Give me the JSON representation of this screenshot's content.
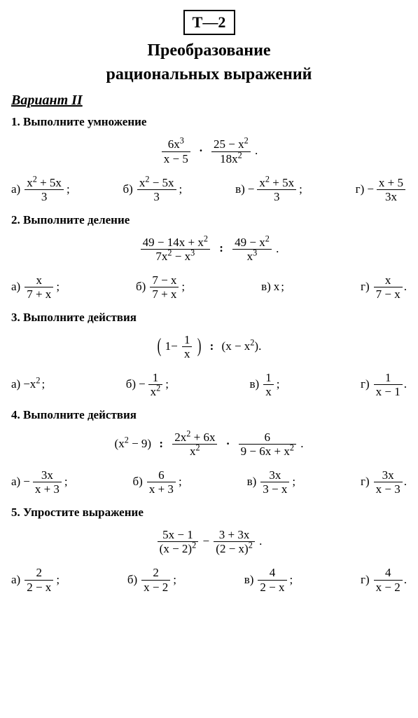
{
  "badge": "Т—2",
  "title_line1": "Преобразование",
  "title_line2": "рациональных выражений",
  "variant": "Вариант II",
  "letters": {
    "a": "а)",
    "b": "б)",
    "v": "в)",
    "g": "г)"
  },
  "t1": {
    "heading_num": "1.",
    "heading_text": " Выполните умножение",
    "expr": {
      "f1n": "6x³",
      "f1d": "x − 5",
      "f2n": "25 − x²",
      "f2d": "18x²"
    },
    "a": {
      "n": "x² + 5x",
      "d": "3"
    },
    "b": {
      "n": "x² − 5x",
      "d": "3"
    },
    "v": {
      "n": "x² + 5x",
      "d": "3"
    },
    "g": {
      "n": "x + 5",
      "d": "3x"
    }
  },
  "t2": {
    "heading_num": "2.",
    "heading_text": " Выполните деление",
    "expr": {
      "f1n": "49 − 14x + x²",
      "f1d": "7x² − x³",
      "f2n": "49 − x²",
      "f2d": "x³"
    },
    "a": {
      "n": "x",
      "d": "7 + x"
    },
    "b": {
      "n": "7 − x",
      "d": "7 + x"
    },
    "v": "x",
    "g": {
      "n": "x",
      "d": "7 − x"
    }
  },
  "t3": {
    "heading_num": "3.",
    "heading_text": " Выполните действия",
    "expr": {
      "left_pre": "1",
      "inner_n": "1",
      "inner_d": "x",
      "right": "(x − x²)."
    },
    "a": "−x²",
    "b": {
      "n": "1",
      "d": "x²"
    },
    "v": {
      "n": "1",
      "d": "x"
    },
    "g": {
      "n": "1",
      "d": "x − 1"
    }
  },
  "t4": {
    "heading_num": "4.",
    "heading_text": " Выполните действия",
    "expr": {
      "pre": "(x² − 9)",
      "f1n": "2x² + 6x",
      "f1d": "x²",
      "f2n": "6",
      "f2d": "9 − 6x + x²"
    },
    "a": {
      "n": "3x",
      "d": "x + 3"
    },
    "b": {
      "n": "6",
      "d": "x + 3"
    },
    "v": {
      "n": "3x",
      "d": "3 − x"
    },
    "g": {
      "n": "3x",
      "d": "x − 3"
    }
  },
  "t5": {
    "heading_num": "5.",
    "heading_text": " Упростите выражение",
    "expr": {
      "f1n": "5x − 1",
      "f1d": "(x − 2)²",
      "f2n": "3 + 3x",
      "f2d": "(2 − x)²"
    },
    "a": {
      "n": "2",
      "d": "2 − x"
    },
    "b": {
      "n": "2",
      "d": "x − 2"
    },
    "v": {
      "n": "4",
      "d": "2 − x"
    },
    "g": {
      "n": "4",
      "d": "x − 2"
    }
  }
}
